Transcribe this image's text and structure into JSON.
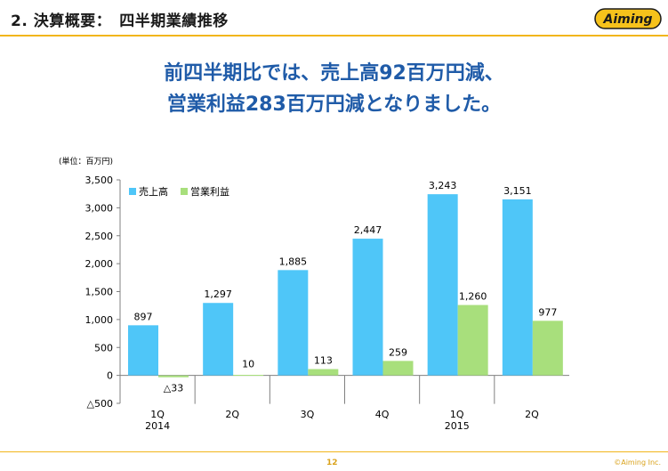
{
  "header": {
    "title": "2. 決算概要：　四半期業績推移",
    "logo_text": "Aiming"
  },
  "headline": {
    "line1": "前四半期比では、売上高92百万円減、",
    "line2": "営業利益283百万円減となりました。"
  },
  "chart_data": {
    "type": "bar",
    "unit_label": "(単位：百万円)",
    "categories": [
      "1Q",
      "2Q",
      "3Q",
      "4Q",
      "1Q",
      "2Q"
    ],
    "year_labels": [
      "2014",
      "",
      "",
      "",
      "2015",
      ""
    ],
    "series": [
      {
        "name": "売上高",
        "color": "#4fc6f8",
        "values": [
          897,
          1297,
          1885,
          2447,
          3243,
          3151
        ],
        "labels": [
          "897",
          "1,297",
          "1,885",
          "2,447",
          "3,243",
          "3,151"
        ]
      },
      {
        "name": "営業利益",
        "color": "#a8df7c",
        "values": [
          -33,
          10,
          113,
          259,
          1260,
          977
        ],
        "labels": [
          "△33",
          "10",
          "113",
          "259",
          "1,260",
          "977"
        ]
      }
    ],
    "ylim": [
      -500,
      3500
    ],
    "yticks": [
      -500,
      0,
      500,
      1000,
      1500,
      2000,
      2500,
      3000,
      3500
    ],
    "ytick_labels": [
      "△500",
      "0",
      "500",
      "1,000",
      "1,500",
      "2,000",
      "2,500",
      "3,000",
      "3,500"
    ],
    "legend_position": "top-left",
    "grid": false
  },
  "footer": {
    "page": "12",
    "copyright": "©Aiming Inc."
  },
  "colors": {
    "accent": "#f2b61b",
    "headline": "#1f5ba8"
  }
}
